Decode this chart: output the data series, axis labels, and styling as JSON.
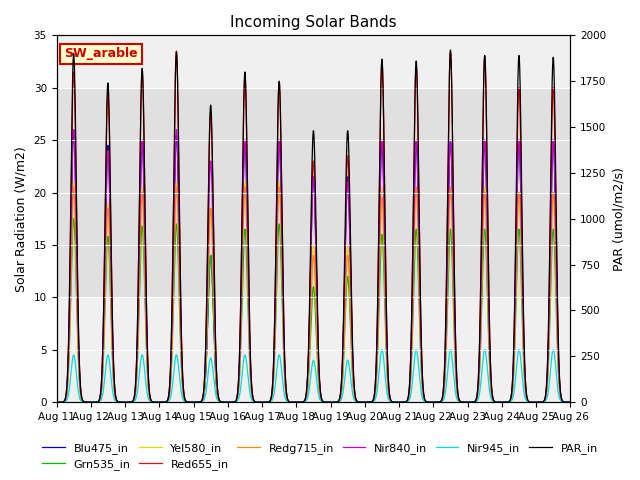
{
  "title": "Incoming Solar Bands",
  "ylabel_left": "Solar Radiation (W/m2)",
  "ylabel_right": "PAR (umol/m2/s)",
  "ylim_left": [
    0,
    35
  ],
  "ylim_right": [
    0,
    2000
  ],
  "fig_bg": "#ffffff",
  "plot_bg": "#f0f0f0",
  "shaded_band": [
    10,
    30
  ],
  "shaded_color": "#e0e0e0",
  "annotation_text": "SW_arable",
  "annotation_color": "#cc0000",
  "annotation_bg": "#ffffcc",
  "annotation_border": "#cc0000",
  "series_order": [
    "Blu475_in",
    "Grn535_in",
    "Yel580_in",
    "Red655_in",
    "Redg715_in",
    "Nir840_in",
    "Nir945_in",
    "PAR_in"
  ],
  "series_colors": {
    "Blu475_in": "#0000cc",
    "Grn535_in": "#00bb00",
    "Yel580_in": "#dddd00",
    "Red655_in": "#ff0000",
    "Redg715_in": "#ff8800",
    "Nir840_in": "#cc00cc",
    "Nir945_in": "#00dddd",
    "PAR_in": "#000000"
  },
  "n_days": 15,
  "points_per_day": 288,
  "sigma": 0.08,
  "peak_heights": {
    "day0": {
      "Blu475_in": 26.0,
      "Grn535_in": 17.5,
      "Yel580_in": 21.0,
      "Red655_in": 31.5,
      "Redg715_in": 20.5,
      "Nir840_in": 26.0,
      "Nir945_in": 4.5,
      "PAR_in": 1900
    },
    "day1": {
      "Blu475_in": 24.5,
      "Grn535_in": 15.8,
      "Yel580_in": 19.0,
      "Red655_in": 29.5,
      "Redg715_in": 18.5,
      "Nir840_in": 24.0,
      "Nir945_in": 4.5,
      "PAR_in": 1740
    },
    "day2": {
      "Blu475_in": 25.0,
      "Grn535_in": 16.8,
      "Yel580_in": 20.5,
      "Red655_in": 31.5,
      "Redg715_in": 20.0,
      "Nir840_in": 25.0,
      "Nir945_in": 4.5,
      "PAR_in": 1820
    },
    "day3": {
      "Blu475_in": 25.5,
      "Grn535_in": 17.0,
      "Yel580_in": 21.0,
      "Red655_in": 33.5,
      "Redg715_in": 20.5,
      "Nir840_in": 26.0,
      "Nir945_in": 4.5,
      "PAR_in": 1910
    },
    "day4": {
      "Blu475_in": 14.0,
      "Grn535_in": 14.0,
      "Yel580_in": 18.5,
      "Red655_in": 27.5,
      "Redg715_in": 18.5,
      "Nir840_in": 23.0,
      "Nir945_in": 4.2,
      "PAR_in": 1620
    },
    "day5": {
      "Blu475_in": 25.0,
      "Grn535_in": 16.5,
      "Yel580_in": 21.0,
      "Red655_in": 31.0,
      "Redg715_in": 20.5,
      "Nir840_in": 25.0,
      "Nir945_in": 4.5,
      "PAR_in": 1800
    },
    "day6": {
      "Blu475_in": 25.0,
      "Grn535_in": 17.0,
      "Yel580_in": 21.0,
      "Red655_in": 30.5,
      "Redg715_in": 20.5,
      "Nir840_in": 25.0,
      "Nir945_in": 4.5,
      "PAR_in": 1750
    },
    "day7": {
      "Blu475_in": 21.5,
      "Grn535_in": 11.0,
      "Yel580_in": 15.0,
      "Red655_in": 23.0,
      "Redg715_in": 14.0,
      "Nir840_in": 21.5,
      "Nir945_in": 4.0,
      "PAR_in": 1480
    },
    "day8": {
      "Blu475_in": 21.5,
      "Grn535_in": 12.0,
      "Yel580_in": 15.0,
      "Red655_in": 23.5,
      "Redg715_in": 14.0,
      "Nir840_in": 21.0,
      "Nir945_in": 4.0,
      "PAR_in": 1480
    },
    "day9": {
      "Blu475_in": 25.0,
      "Grn535_in": 16.0,
      "Yel580_in": 20.5,
      "Red655_in": 32.5,
      "Redg715_in": 19.5,
      "Nir840_in": 25.0,
      "Nir945_in": 5.0,
      "PAR_in": 1870
    },
    "day10": {
      "Blu475_in": 25.0,
      "Grn535_in": 16.5,
      "Yel580_in": 20.5,
      "Red655_in": 32.0,
      "Redg715_in": 20.5,
      "Nir840_in": 25.0,
      "Nir945_in": 5.0,
      "PAR_in": 1860
    },
    "day11": {
      "Blu475_in": 25.0,
      "Grn535_in": 16.5,
      "Yel580_in": 20.5,
      "Red655_in": 33.5,
      "Redg715_in": 20.5,
      "Nir840_in": 25.0,
      "Nir945_in": 5.0,
      "PAR_in": 1920
    },
    "day12": {
      "Blu475_in": 25.0,
      "Grn535_in": 16.5,
      "Yel580_in": 20.5,
      "Red655_in": 33.0,
      "Redg715_in": 20.0,
      "Nir840_in": 25.0,
      "Nir945_in": 5.0,
      "PAR_in": 1890
    },
    "day13": {
      "Blu475_in": 25.0,
      "Grn535_in": 16.5,
      "Yel580_in": 20.0,
      "Red655_in": 30.0,
      "Redg715_in": 20.0,
      "Nir840_in": 25.0,
      "Nir945_in": 5.0,
      "PAR_in": 1890
    },
    "day14": {
      "Blu475_in": 25.0,
      "Grn535_in": 16.5,
      "Yel580_in": 20.0,
      "Red655_in": 30.0,
      "Redg715_in": 20.0,
      "Nir840_in": 25.0,
      "Nir945_in": 5.0,
      "PAR_in": 1880
    }
  },
  "xtick_labels": [
    "Aug 11",
    "Aug 12",
    "Aug 13",
    "Aug 14",
    "Aug 15",
    "Aug 16",
    "Aug 17",
    "Aug 18",
    "Aug 19",
    "Aug 20",
    "Aug 21",
    "Aug 22",
    "Aug 23",
    "Aug 24",
    "Aug 25",
    "Aug 26"
  ],
  "grid_yticks": [
    0,
    5,
    10,
    15,
    20,
    25,
    30,
    35
  ],
  "grid_color": "#ffffff",
  "legend_fontsize": 8,
  "title_fontsize": 11,
  "axis_fontsize": 9,
  "tick_fontsize": 7.5
}
